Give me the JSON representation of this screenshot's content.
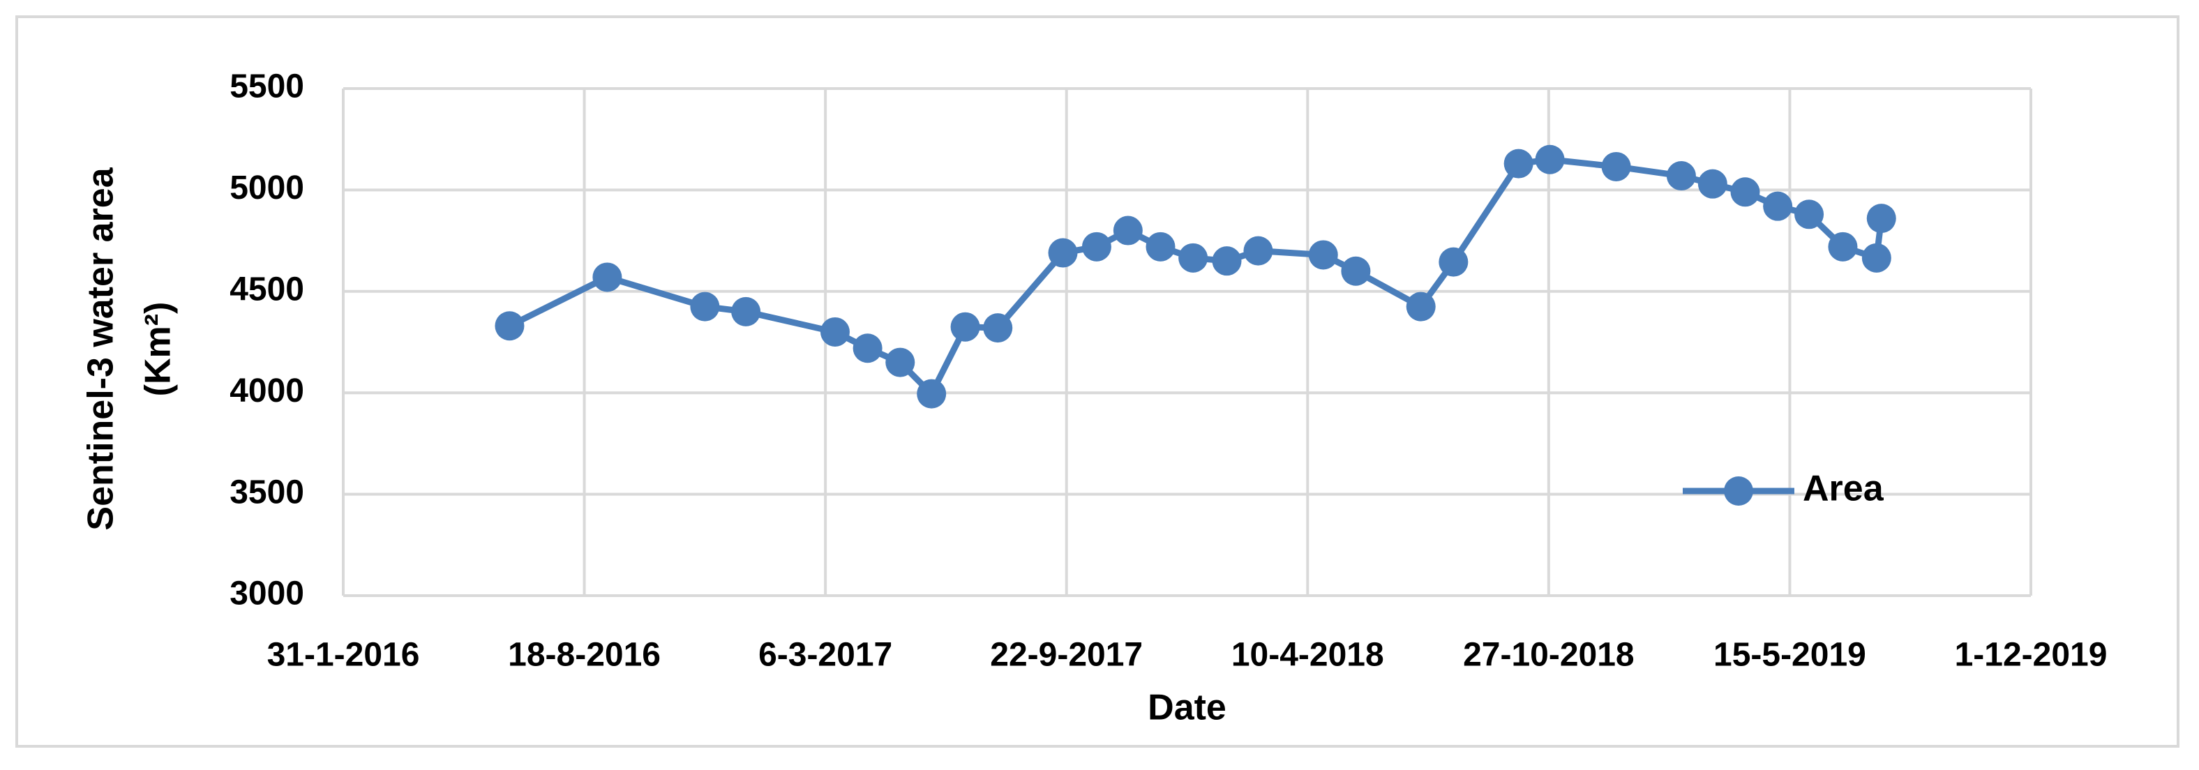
{
  "chart_data": {
    "type": "line",
    "xlabel": "Date",
    "ylabel": [
      "Sentinel-3 water area",
      "(Km²)"
    ],
    "x": [
      "17-6-2016",
      "6-9-2016",
      "26-11-2016",
      "30-12-2016",
      "14-3-2017",
      "10-4-2017",
      "7-5-2017",
      "2-6-2017",
      "30-6-2017",
      "27-7-2017",
      "19-9-2017",
      "17-10-2017",
      "12-11-2017",
      "9-12-2017",
      "5-1-2018",
      "2-2-2018",
      "28-2-2018",
      "23-4-2018",
      "20-5-2018",
      "13-7-2018",
      "9-8-2018",
      "2-10-2018",
      "28-10-2018",
      "22-12-2018",
      "14-2-2019",
      "12-3-2019",
      "8-4-2019",
      "5-5-2019",
      "31-5-2019",
      "28-6-2019",
      "26-7-2019",
      "30-7-2019"
    ],
    "series": [
      {
        "name": "Area",
        "color": "#4a7ebb",
        "values": [
          4330,
          4570,
          4425,
          4400,
          4300,
          4220,
          4150,
          3995,
          4325,
          4320,
          4690,
          4720,
          4800,
          4720,
          4665,
          4650,
          4700,
          4680,
          4600,
          4425,
          4645,
          5130,
          5150,
          5115,
          5070,
          5030,
          4990,
          4920,
          4880,
          4720,
          4665,
          4860
        ]
      }
    ],
    "xlim": [
      "31-1-2016",
      "1-12-2019"
    ],
    "xticks": [
      "31-1-2016",
      "18-8-2016",
      "6-3-2017",
      "22-9-2017",
      "10-4-2018",
      "27-10-2018",
      "15-5-2019",
      "1-12-2019"
    ],
    "ylim": [
      3000,
      5500
    ],
    "yticks": [
      3000,
      3500,
      4000,
      4500,
      5000,
      5500
    ],
    "grid": true,
    "legend": "lower right"
  }
}
